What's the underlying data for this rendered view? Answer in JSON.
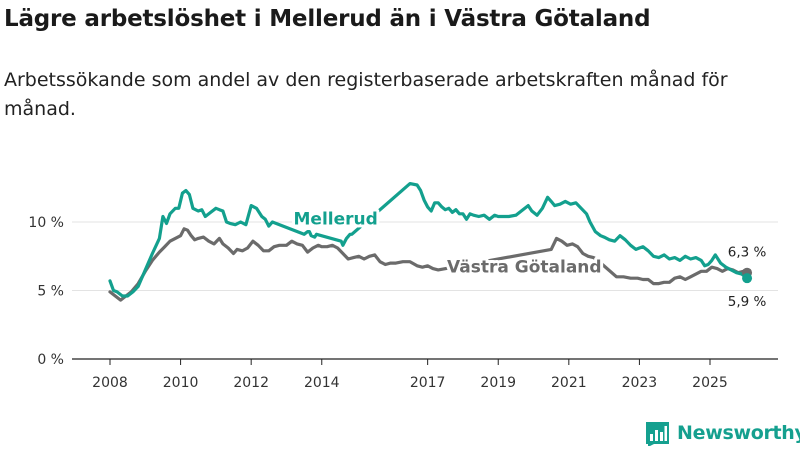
{
  "title": "Lägre arbetslöshet i Mellerud än i Västra Götaland",
  "subtitle": "Arbetssökande som andel av den registerbaserade arbetskraften månad för månad.",
  "brand": "Newsworthy",
  "colors": {
    "mellerud": "#13a08e",
    "vastra": "#6b6b6b",
    "grid": "#e3e3e3",
    "axis": "#222222",
    "brand": "#15a08f"
  },
  "chart_data": {
    "type": "line",
    "x_unit": "year (decimal)",
    "y_unit": "percent",
    "ylim": [
      0,
      15
    ],
    "xlim": [
      2007.5,
      2027.0
    ],
    "yticks": [
      {
        "value": 0,
        "label": "0 %"
      },
      {
        "value": 5,
        "label": "5 %"
      },
      {
        "value": 10,
        "label": "10 %"
      }
    ],
    "xticks": [
      {
        "value": 2008,
        "label": "2008"
      },
      {
        "value": 2010,
        "label": "2010"
      },
      {
        "value": 2012,
        "label": "2012"
      },
      {
        "value": 2014,
        "label": "2014"
      },
      {
        "value": 2017,
        "label": "2017"
      },
      {
        "value": 2019,
        "label": "2019"
      },
      {
        "value": 2021,
        "label": "2021"
      },
      {
        "value": 2023,
        "label": "2023"
      },
      {
        "value": 2025,
        "label": "2025"
      }
    ],
    "series": [
      {
        "name": "Mellerud",
        "key": "mellerud",
        "end_label": "5,9 %",
        "points": [
          [
            2008.0,
            5.7
          ],
          [
            2008.1,
            5.0
          ],
          [
            2008.2,
            4.9
          ],
          [
            2008.35,
            4.6
          ],
          [
            2008.5,
            4.6
          ],
          [
            2008.65,
            4.9
          ],
          [
            2008.8,
            5.3
          ],
          [
            2009.0,
            6.5
          ],
          [
            2009.2,
            7.7
          ],
          [
            2009.4,
            8.8
          ],
          [
            2009.5,
            10.4
          ],
          [
            2009.6,
            9.9
          ],
          [
            2009.7,
            10.6
          ],
          [
            2009.85,
            11.0
          ],
          [
            2009.95,
            11.0
          ],
          [
            2010.05,
            12.1
          ],
          [
            2010.15,
            12.3
          ],
          [
            2010.25,
            12.0
          ],
          [
            2010.35,
            11.0
          ],
          [
            2010.5,
            10.8
          ],
          [
            2010.6,
            10.9
          ],
          [
            2010.7,
            10.4
          ],
          [
            2010.85,
            10.7
          ],
          [
            2011.0,
            11.0
          ],
          [
            2011.1,
            10.9
          ],
          [
            2011.2,
            10.8
          ],
          [
            2011.3,
            10.0
          ],
          [
            2011.4,
            9.9
          ],
          [
            2011.55,
            9.8
          ],
          [
            2011.7,
            10.0
          ],
          [
            2011.85,
            9.8
          ],
          [
            2012.0,
            11.2
          ],
          [
            2012.15,
            11.0
          ],
          [
            2012.3,
            10.4
          ],
          [
            2012.4,
            10.2
          ],
          [
            2012.5,
            9.7
          ],
          [
            2012.6,
            10.0
          ],
          [
            2013.5,
            9.1
          ],
          [
            2013.6,
            9.3
          ],
          [
            2013.65,
            9.3
          ],
          [
            2013.7,
            9.0
          ],
          [
            2013.8,
            8.9
          ],
          [
            2013.85,
            9.1
          ],
          [
            2014.55,
            8.6
          ],
          [
            2014.6,
            8.3
          ],
          [
            2014.7,
            8.8
          ],
          [
            2014.8,
            9.1
          ],
          [
            2014.85,
            9.1
          ],
          [
            2016.5,
            12.8
          ],
          [
            2016.7,
            12.7
          ],
          [
            2016.8,
            12.3
          ],
          [
            2016.9,
            11.6
          ],
          [
            2017.0,
            11.1
          ],
          [
            2017.1,
            10.8
          ],
          [
            2017.2,
            11.4
          ],
          [
            2017.3,
            11.4
          ],
          [
            2017.4,
            11.1
          ],
          [
            2017.5,
            10.9
          ],
          [
            2017.6,
            11.0
          ],
          [
            2017.7,
            10.7
          ],
          [
            2017.8,
            10.9
          ],
          [
            2017.9,
            10.6
          ],
          [
            2018.0,
            10.6
          ],
          [
            2018.1,
            10.2
          ],
          [
            2018.2,
            10.6
          ],
          [
            2018.3,
            10.5
          ],
          [
            2018.45,
            10.4
          ],
          [
            2018.6,
            10.5
          ],
          [
            2018.75,
            10.2
          ],
          [
            2018.9,
            10.5
          ],
          [
            2019.0,
            10.4
          ],
          [
            2019.15,
            10.4
          ],
          [
            2019.3,
            10.4
          ],
          [
            2019.5,
            10.5
          ],
          [
            2019.7,
            10.9
          ],
          [
            2019.85,
            11.2
          ],
          [
            2019.95,
            10.8
          ],
          [
            2020.1,
            10.5
          ],
          [
            2020.25,
            11.0
          ],
          [
            2020.4,
            11.8
          ],
          [
            2020.5,
            11.5
          ],
          [
            2020.6,
            11.2
          ],
          [
            2020.75,
            11.3
          ],
          [
            2020.9,
            11.5
          ],
          [
            2021.05,
            11.3
          ],
          [
            2021.2,
            11.4
          ],
          [
            2021.35,
            11.0
          ],
          [
            2021.5,
            10.6
          ],
          [
            2021.6,
            10.0
          ],
          [
            2021.75,
            9.3
          ],
          [
            2021.9,
            9.0
          ],
          [
            2022.0,
            8.9
          ],
          [
            2022.15,
            8.7
          ],
          [
            2022.3,
            8.6
          ],
          [
            2022.45,
            9.0
          ],
          [
            2022.6,
            8.7
          ],
          [
            2022.75,
            8.3
          ],
          [
            2022.9,
            8.0
          ],
          [
            2023.0,
            8.1
          ],
          [
            2023.1,
            8.2
          ],
          [
            2023.25,
            7.9
          ],
          [
            2023.4,
            7.5
          ],
          [
            2023.55,
            7.4
          ],
          [
            2023.7,
            7.6
          ],
          [
            2023.85,
            7.3
          ],
          [
            2024.0,
            7.4
          ],
          [
            2024.15,
            7.2
          ],
          [
            2024.3,
            7.5
          ],
          [
            2024.45,
            7.3
          ],
          [
            2024.6,
            7.4
          ],
          [
            2024.75,
            7.2
          ],
          [
            2024.85,
            6.8
          ],
          [
            2024.95,
            6.9
          ],
          [
            2025.05,
            7.2
          ],
          [
            2025.15,
            7.6
          ],
          [
            2025.3,
            7.0
          ],
          [
            2025.45,
            6.7
          ],
          [
            2025.6,
            6.5
          ],
          [
            2025.75,
            6.3
          ],
          [
            2025.9,
            6.2
          ],
          [
            2026.05,
            5.9
          ]
        ]
      },
      {
        "name": "Västra Götaland",
        "key": "vastra",
        "end_label": "6,3 %",
        "points": [
          [
            2008.0,
            4.9
          ],
          [
            2008.15,
            4.6
          ],
          [
            2008.3,
            4.3
          ],
          [
            2008.45,
            4.6
          ],
          [
            2008.6,
            4.9
          ],
          [
            2008.8,
            5.5
          ],
          [
            2009.0,
            6.4
          ],
          [
            2009.2,
            7.2
          ],
          [
            2009.4,
            7.8
          ],
          [
            2009.55,
            8.2
          ],
          [
            2009.7,
            8.6
          ],
          [
            2009.85,
            8.8
          ],
          [
            2010.0,
            9.0
          ],
          [
            2010.1,
            9.5
          ],
          [
            2010.2,
            9.4
          ],
          [
            2010.3,
            9.0
          ],
          [
            2010.4,
            8.7
          ],
          [
            2010.5,
            8.8
          ],
          [
            2010.65,
            8.9
          ],
          [
            2010.8,
            8.6
          ],
          [
            2010.95,
            8.4
          ],
          [
            2011.1,
            8.8
          ],
          [
            2011.2,
            8.4
          ],
          [
            2011.35,
            8.1
          ],
          [
            2011.5,
            7.7
          ],
          [
            2011.6,
            8.0
          ],
          [
            2011.75,
            7.9
          ],
          [
            2011.9,
            8.1
          ],
          [
            2012.05,
            8.6
          ],
          [
            2012.2,
            8.3
          ],
          [
            2012.35,
            7.9
          ],
          [
            2012.5,
            7.9
          ],
          [
            2012.65,
            8.2
          ],
          [
            2012.8,
            8.3
          ],
          [
            2013.0,
            8.3
          ],
          [
            2013.15,
            8.6
          ],
          [
            2013.3,
            8.4
          ],
          [
            2013.45,
            8.3
          ],
          [
            2013.6,
            7.8
          ],
          [
            2013.75,
            8.1
          ],
          [
            2013.9,
            8.3
          ],
          [
            2014.0,
            8.2
          ],
          [
            2014.15,
            8.2
          ],
          [
            2014.3,
            8.3
          ],
          [
            2014.45,
            8.1
          ],
          [
            2014.6,
            7.7
          ],
          [
            2014.75,
            7.3
          ],
          [
            2014.9,
            7.4
          ],
          [
            2015.05,
            7.5
          ],
          [
            2015.2,
            7.3
          ],
          [
            2015.35,
            7.5
          ],
          [
            2015.5,
            7.6
          ],
          [
            2015.65,
            7.1
          ],
          [
            2015.8,
            6.9
          ],
          [
            2015.95,
            7.0
          ],
          [
            2016.1,
            7.0
          ],
          [
            2016.3,
            7.1
          ],
          [
            2016.5,
            7.1
          ],
          [
            2016.7,
            6.8
          ],
          [
            2016.85,
            6.7
          ],
          [
            2017.0,
            6.8
          ],
          [
            2017.15,
            6.6
          ],
          [
            2017.3,
            6.5
          ],
          [
            2020.5,
            8.0
          ],
          [
            2020.65,
            8.8
          ],
          [
            2020.8,
            8.6
          ],
          [
            2020.95,
            8.3
          ],
          [
            2021.1,
            8.4
          ],
          [
            2021.25,
            8.2
          ],
          [
            2021.4,
            7.7
          ],
          [
            2021.55,
            7.5
          ],
          [
            2021.7,
            7.4
          ],
          [
            2021.85,
            7.2
          ],
          [
            2021.95,
            6.9
          ],
          [
            2022.35,
            6.0
          ],
          [
            2022.55,
            6.0
          ],
          [
            2022.75,
            5.9
          ],
          [
            2022.95,
            5.9
          ],
          [
            2023.1,
            5.8
          ],
          [
            2023.25,
            5.8
          ],
          [
            2023.4,
            5.5
          ],
          [
            2023.55,
            5.5
          ],
          [
            2023.7,
            5.6
          ],
          [
            2023.85,
            5.6
          ],
          [
            2024.0,
            5.9
          ],
          [
            2024.15,
            6.0
          ],
          [
            2024.3,
            5.8
          ],
          [
            2024.45,
            6.0
          ],
          [
            2024.6,
            6.2
          ],
          [
            2024.75,
            6.4
          ],
          [
            2024.9,
            6.4
          ],
          [
            2025.05,
            6.7
          ],
          [
            2025.2,
            6.6
          ],
          [
            2025.35,
            6.4
          ],
          [
            2025.5,
            6.6
          ],
          [
            2025.65,
            6.5
          ],
          [
            2025.8,
            6.3
          ],
          [
            2025.95,
            6.4
          ],
          [
            2026.05,
            6.3
          ]
        ]
      }
    ]
  }
}
